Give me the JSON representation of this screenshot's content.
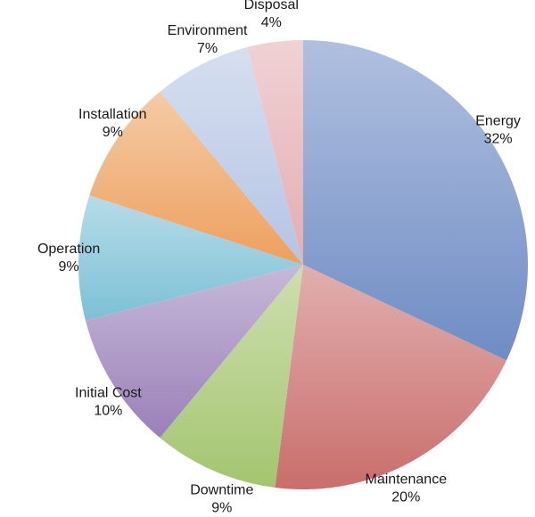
{
  "chart_data": {
    "type": "pie",
    "title": "",
    "slices": [
      {
        "label": "Energy",
        "value": 32,
        "value_label": "32%",
        "color": "#6f8cc4"
      },
      {
        "label": "Maintenance",
        "value": 20,
        "value_label": "20%",
        "color": "#c96e6c"
      },
      {
        "label": "Downtime",
        "value": 9,
        "value_label": "9%",
        "color": "#a4c56f"
      },
      {
        "label": "Initial Cost",
        "value": 10,
        "value_label": "10%",
        "color": "#9a80b8"
      },
      {
        "label": "Operation",
        "value": 9,
        "value_label": "9%",
        "color": "#7cc0d6"
      },
      {
        "label": "Installation",
        "value": 9,
        "value_label": "9%",
        "color": "#eda05e"
      },
      {
        "label": "Environment",
        "value": 7,
        "value_label": "7%",
        "color": "#b5c4e4"
      },
      {
        "label": "Disposal",
        "value": 4,
        "value_label": "4%",
        "color": "#e3adb1"
      }
    ],
    "start_angle_deg": 0,
    "direction": "clockwise",
    "legend": "none"
  }
}
